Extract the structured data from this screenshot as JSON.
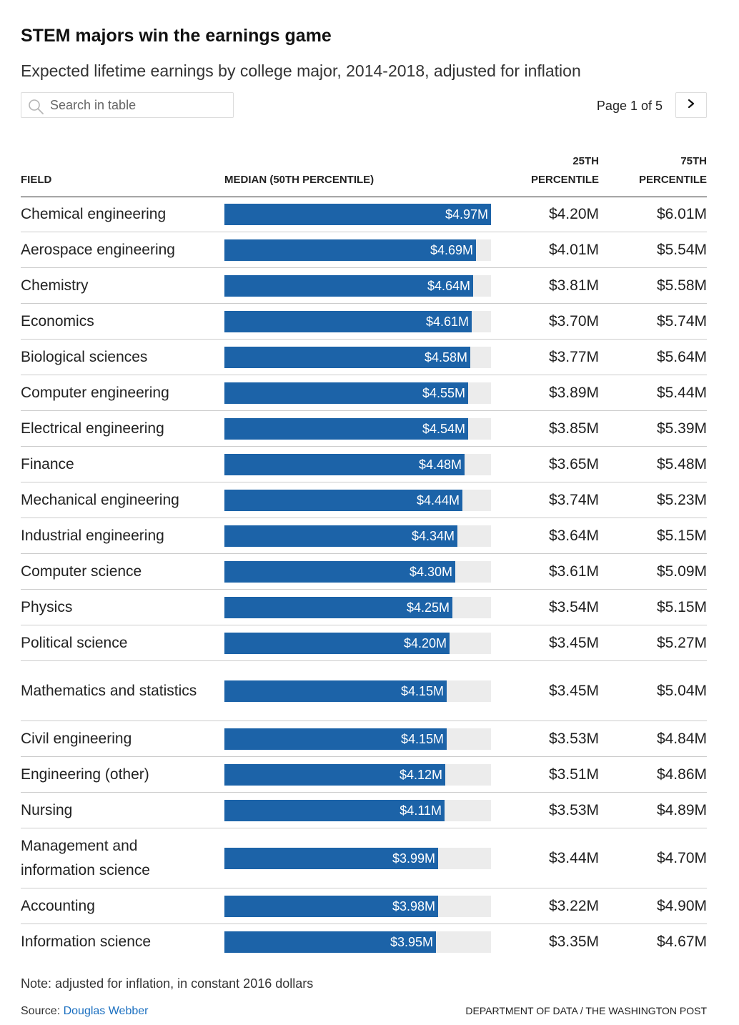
{
  "title": "STEM majors win the earnings game",
  "subtitle": "Expected lifetime earnings by college major, 2014-2018, adjusted for inflation",
  "search": {
    "placeholder": "Search in table",
    "value": ""
  },
  "pager": {
    "text": "Page 1 of 5"
  },
  "icons": {
    "search": "search-icon",
    "next": "chevron-right-icon"
  },
  "colors": {
    "bar": "#1c63a8",
    "track": "#ececec",
    "link": "#1a6fc0"
  },
  "headers": {
    "field": "FIELD",
    "median": "MEDIAN (50TH PERCENTILE)",
    "p25_line1": "25TH",
    "p25_line2": "PERCENTILE",
    "p75_line1": "75TH",
    "p75_line2": "PERCENTILE"
  },
  "note": "Note: adjusted for inflation, in constant 2016 dollars",
  "source": {
    "label": "Source: ",
    "link_text": "Douglas Webber"
  },
  "credit": "DEPARTMENT OF DATA / THE WASHINGTON POST",
  "chart_data": {
    "type": "table",
    "title": "STEM majors win the earnings game",
    "subtitle": "Expected lifetime earnings by college major, 2014-2018, adjusted for inflation",
    "columns": [
      "FIELD",
      "MEDIAN (50TH PERCENTILE)",
      "25TH PERCENTILE",
      "75TH PERCENTILE"
    ],
    "bar_max": 4.97,
    "rows": [
      {
        "field": "Chemical engineering",
        "median": 4.97,
        "median_label": "$4.97M",
        "p25": "$4.20M",
        "p75": "$6.01M"
      },
      {
        "field": "Aerospace engineering",
        "median": 4.69,
        "median_label": "$4.69M",
        "p25": "$4.01M",
        "p75": "$5.54M"
      },
      {
        "field": "Chemistry",
        "median": 4.64,
        "median_label": "$4.64M",
        "p25": "$3.81M",
        "p75": "$5.58M"
      },
      {
        "field": "Economics",
        "median": 4.61,
        "median_label": "$4.61M",
        "p25": "$3.70M",
        "p75": "$5.74M"
      },
      {
        "field": "Biological sciences",
        "median": 4.58,
        "median_label": "$4.58M",
        "p25": "$3.77M",
        "p75": "$5.64M"
      },
      {
        "field": "Computer engineering",
        "median": 4.55,
        "median_label": "$4.55M",
        "p25": "$3.89M",
        "p75": "$5.44M"
      },
      {
        "field": "Electrical engineering",
        "median": 4.54,
        "median_label": "$4.54M",
        "p25": "$3.85M",
        "p75": "$5.39M"
      },
      {
        "field": "Finance",
        "median": 4.48,
        "median_label": "$4.48M",
        "p25": "$3.65M",
        "p75": "$5.48M"
      },
      {
        "field": "Mechanical engineering",
        "median": 4.44,
        "median_label": "$4.44M",
        "p25": "$3.74M",
        "p75": "$5.23M"
      },
      {
        "field": "Industrial engineering",
        "median": 4.34,
        "median_label": "$4.34M",
        "p25": "$3.64M",
        "p75": "$5.15M"
      },
      {
        "field": "Computer science",
        "median": 4.3,
        "median_label": "$4.30M",
        "p25": "$3.61M",
        "p75": "$5.09M"
      },
      {
        "field": "Physics",
        "median": 4.25,
        "median_label": "$4.25M",
        "p25": "$3.54M",
        "p75": "$5.15M"
      },
      {
        "field": "Political science",
        "median": 4.2,
        "median_label": "$4.20M",
        "p25": "$3.45M",
        "p75": "$5.27M"
      },
      {
        "field": "Mathematics and statistics",
        "median": 4.15,
        "median_label": "$4.15M",
        "p25": "$3.45M",
        "p75": "$5.04M"
      },
      {
        "field": "Civil engineering",
        "median": 4.15,
        "median_label": "$4.15M",
        "p25": "$3.53M",
        "p75": "$4.84M"
      },
      {
        "field": "Engineering (other)",
        "median": 4.12,
        "median_label": "$4.12M",
        "p25": "$3.51M",
        "p75": "$4.86M"
      },
      {
        "field": "Nursing",
        "median": 4.11,
        "median_label": "$4.11M",
        "p25": "$3.53M",
        "p75": "$4.89M"
      },
      {
        "field": "Management and information science",
        "median": 3.99,
        "median_label": "$3.99M",
        "p25": "$3.44M",
        "p75": "$4.70M"
      },
      {
        "field": "Accounting",
        "median": 3.98,
        "median_label": "$3.98M",
        "p25": "$3.22M",
        "p75": "$4.90M"
      },
      {
        "field": "Information science",
        "median": 3.95,
        "median_label": "$3.95M",
        "p25": "$3.35M",
        "p75": "$4.67M"
      }
    ]
  }
}
